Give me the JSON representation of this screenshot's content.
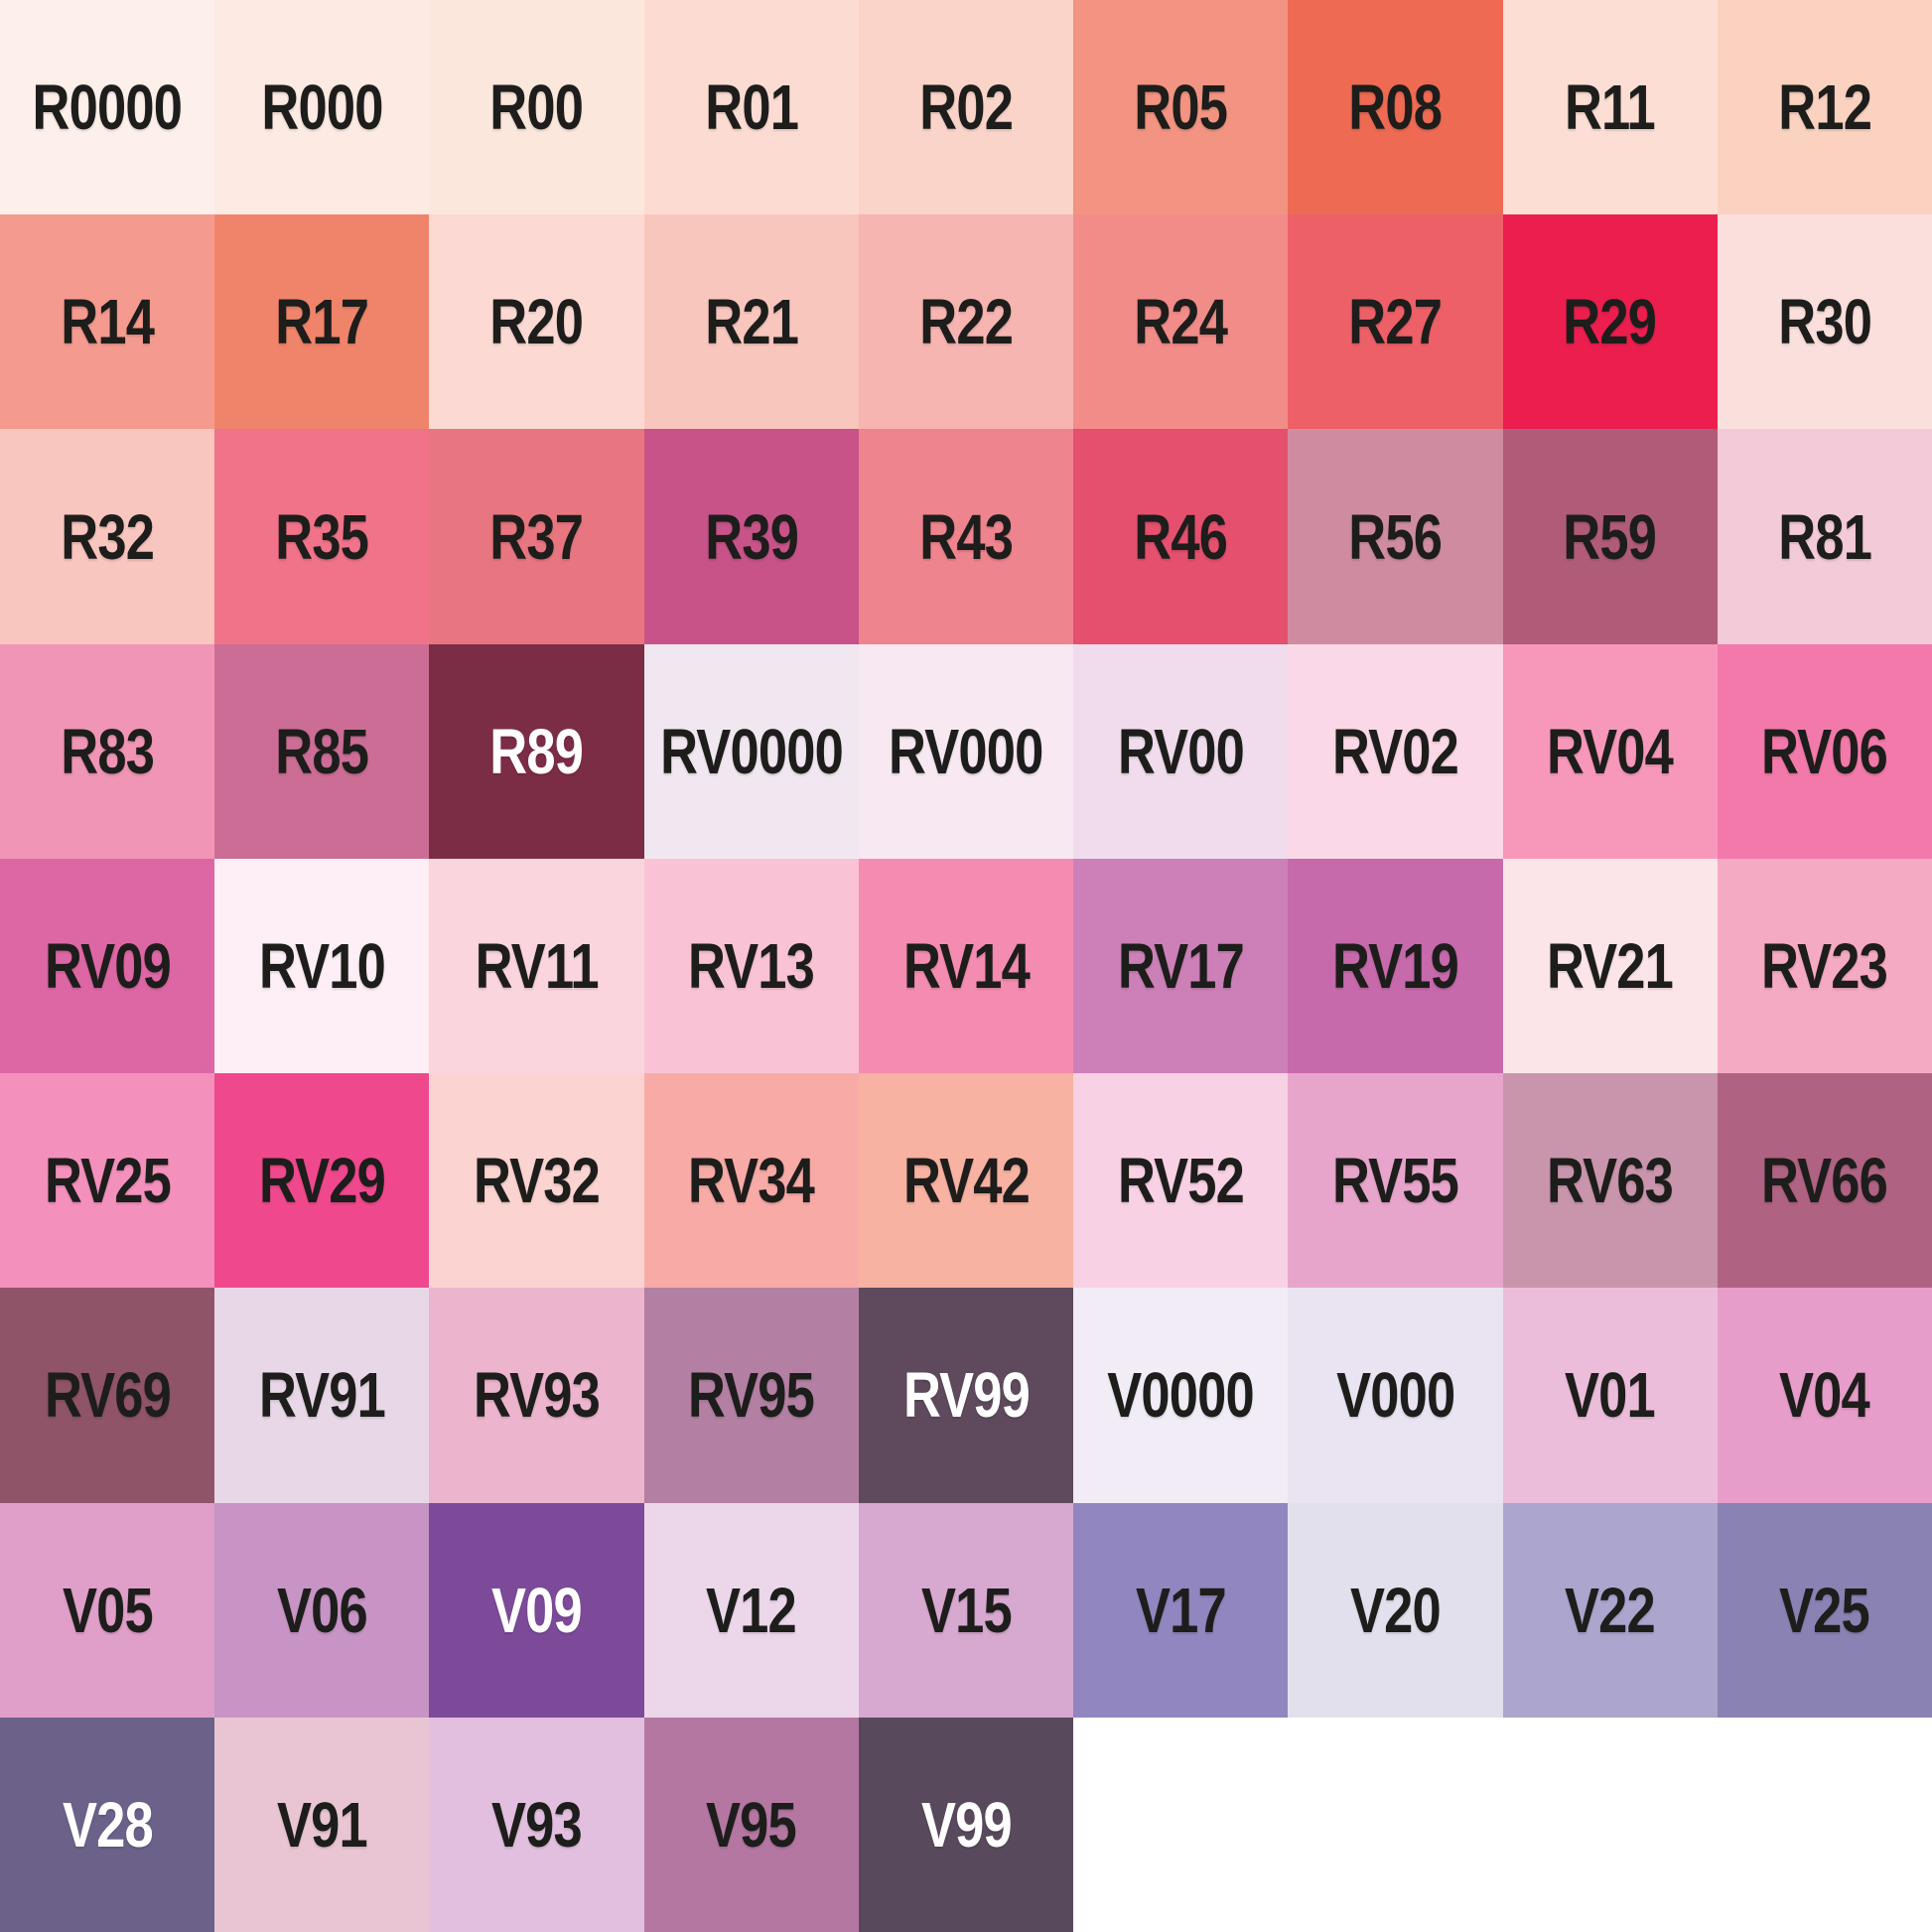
{
  "chart_data": {
    "type": "table",
    "description": "Color swatch chart of marker colors in the R (red), RV (red-violet) and V (violet) families; each cell shows the color code on its swatch color",
    "columns": 9,
    "rows_count": 9,
    "label_color_dark": "#1d1d1b",
    "label_color_light": "#ffffff",
    "rows": [
      [
        {
          "code": "R0000",
          "bg": "#fdefe9",
          "fg": "dark"
        },
        {
          "code": "R000",
          "bg": "#fdeae2",
          "fg": "dark"
        },
        {
          "code": "R00",
          "bg": "#fce7dd",
          "fg": "dark"
        },
        {
          "code": "R01",
          "bg": "#fcdcd2",
          "fg": "dark"
        },
        {
          "code": "R02",
          "bg": "#fbd4c9",
          "fg": "dark"
        },
        {
          "code": "R05",
          "bg": "#f29481",
          "fg": "dark"
        },
        {
          "code": "R08",
          "bg": "#ee6a53",
          "fg": "dark"
        },
        {
          "code": "R11",
          "bg": "#fcded4",
          "fg": "dark"
        },
        {
          "code": "R12",
          "bg": "#fbd2c0",
          "fg": "dark"
        }
      ],
      [
        {
          "code": "R14",
          "bg": "#f59a8e",
          "fg": "dark"
        },
        {
          "code": "R17",
          "bg": "#f0846a",
          "fg": "dark"
        },
        {
          "code": "R20",
          "bg": "#fcdad3",
          "fg": "dark"
        },
        {
          "code": "R21",
          "bg": "#f9c6bd",
          "fg": "dark"
        },
        {
          "code": "R22",
          "bg": "#f6b5b0",
          "fg": "dark"
        },
        {
          "code": "R24",
          "bg": "#f28c88",
          "fg": "dark"
        },
        {
          "code": "R27",
          "bg": "#ee6067",
          "fg": "dark"
        },
        {
          "code": "R29",
          "bg": "#eb1e4e",
          "fg": "dark"
        },
        {
          "code": "R30",
          "bg": "#fbdfdc",
          "fg": "dark"
        }
      ],
      [
        {
          "code": "R32",
          "bg": "#f8c5bf",
          "fg": "dark"
        },
        {
          "code": "R35",
          "bg": "#f07389",
          "fg": "dark"
        },
        {
          "code": "R37",
          "bg": "#e87680",
          "fg": "dark"
        },
        {
          "code": "R39",
          "bg": "#c75389",
          "fg": "dark"
        },
        {
          "code": "R43",
          "bg": "#ee848e",
          "fg": "dark"
        },
        {
          "code": "R46",
          "bg": "#e4506e",
          "fg": "dark"
        },
        {
          "code": "R56",
          "bg": "#cf8ca1",
          "fg": "dark"
        },
        {
          "code": "R59",
          "bg": "#b05c79",
          "fg": "dark"
        },
        {
          "code": "R81",
          "bg": "#f2cad8",
          "fg": "dark"
        }
      ],
      [
        {
          "code": "R83",
          "bg": "#f095b6",
          "fg": "dark"
        },
        {
          "code": "R85",
          "bg": "#cc6d96",
          "fg": "dark"
        },
        {
          "code": "R89",
          "bg": "#7c2d46",
          "fg": "light"
        },
        {
          "code": "RV0000",
          "bg": "#f1e7f0",
          "fg": "dark"
        },
        {
          "code": "RV000",
          "bg": "#f7e8f2",
          "fg": "dark"
        },
        {
          "code": "RV00",
          "bg": "#f0dcec",
          "fg": "dark"
        },
        {
          "code": "RV02",
          "bg": "#fbd8e7",
          "fg": "dark"
        },
        {
          "code": "RV04",
          "bg": "#f798ba",
          "fg": "dark"
        },
        {
          "code": "RV06",
          "bg": "#f279a9",
          "fg": "dark"
        }
      ],
      [
        {
          "code": "RV09",
          "bg": "#dd67a5",
          "fg": "dark"
        },
        {
          "code": "RV10",
          "bg": "#fdeff5",
          "fg": "dark"
        },
        {
          "code": "RV11",
          "bg": "#fad5de",
          "fg": "dark"
        },
        {
          "code": "RV13",
          "bg": "#f9c3d5",
          "fg": "dark"
        },
        {
          "code": "RV14",
          "bg": "#f48cb1",
          "fg": "dark"
        },
        {
          "code": "RV17",
          "bg": "#cd80b8",
          "fg": "dark"
        },
        {
          "code": "RV19",
          "bg": "#c66aac",
          "fg": "dark"
        },
        {
          "code": "RV21",
          "bg": "#fce5e9",
          "fg": "dark"
        },
        {
          "code": "RV23",
          "bg": "#f5aac3",
          "fg": "dark"
        }
      ],
      [
        {
          "code": "RV25",
          "bg": "#f490bc",
          "fg": "dark"
        },
        {
          "code": "RV29",
          "bg": "#f0488d",
          "fg": "dark"
        },
        {
          "code": "RV32",
          "bg": "#fbd4d1",
          "fg": "dark"
        },
        {
          "code": "RV34",
          "bg": "#f8aaa6",
          "fg": "dark"
        },
        {
          "code": "RV42",
          "bg": "#f8b2a2",
          "fg": "dark"
        },
        {
          "code": "RV52",
          "bg": "#f9d1e5",
          "fg": "dark"
        },
        {
          "code": "RV55",
          "bg": "#e8a5cc",
          "fg": "dark"
        },
        {
          "code": "RV63",
          "bg": "#c895ac",
          "fg": "dark"
        },
        {
          "code": "RV66",
          "bg": "#b06282",
          "fg": "dark"
        }
      ],
      [
        {
          "code": "RV69",
          "bg": "#8f5468",
          "fg": "dark"
        },
        {
          "code": "RV91",
          "bg": "#e8d7e7",
          "fg": "dark"
        },
        {
          "code": "RV93",
          "bg": "#ecb4cd",
          "fg": "dark"
        },
        {
          "code": "RV95",
          "bg": "#b380a3",
          "fg": "dark"
        },
        {
          "code": "RV99",
          "bg": "#5e4a5c",
          "fg": "light"
        },
        {
          "code": "V0000",
          "bg": "#f1ecf5",
          "fg": "dark"
        },
        {
          "code": "V000",
          "bg": "#eae4f2",
          "fg": "dark"
        },
        {
          "code": "V01",
          "bg": "#ecbdda",
          "fg": "dark"
        },
        {
          "code": "V04",
          "bg": "#e79dc9",
          "fg": "dark"
        }
      ],
      [
        {
          "code": "V05",
          "bg": "#df9fc9",
          "fg": "dark"
        },
        {
          "code": "V06",
          "bg": "#c794c5",
          "fg": "dark"
        },
        {
          "code": "V09",
          "bg": "#7c4a99",
          "fg": "light"
        },
        {
          "code": "V12",
          "bg": "#ecd7ea",
          "fg": "dark"
        },
        {
          "code": "V15",
          "bg": "#d7a8d0",
          "fg": "dark"
        },
        {
          "code": "V17",
          "bg": "#9186bf",
          "fg": "dark"
        },
        {
          "code": "V20",
          "bg": "#e3e0ed",
          "fg": "dark"
        },
        {
          "code": "V22",
          "bg": "#aca5ce",
          "fg": "dark"
        },
        {
          "code": "V25",
          "bg": "#8a82b3",
          "fg": "dark"
        }
      ],
      [
        {
          "code": "V28",
          "bg": "#6b6189",
          "fg": "light"
        },
        {
          "code": "V91",
          "bg": "#e9c5d3",
          "fg": "dark"
        },
        {
          "code": "V93",
          "bg": "#e2bfdf",
          "fg": "dark"
        },
        {
          "code": "V95",
          "bg": "#b477a2",
          "fg": "dark"
        },
        {
          "code": "V99",
          "bg": "#584a5c",
          "fg": "light"
        },
        {
          "code": "",
          "bg": "#ffffff",
          "fg": "dark"
        },
        {
          "code": "",
          "bg": "#ffffff",
          "fg": "dark"
        },
        {
          "code": "",
          "bg": "#ffffff",
          "fg": "dark"
        },
        {
          "code": "",
          "bg": "#ffffff",
          "fg": "dark"
        }
      ]
    ]
  }
}
